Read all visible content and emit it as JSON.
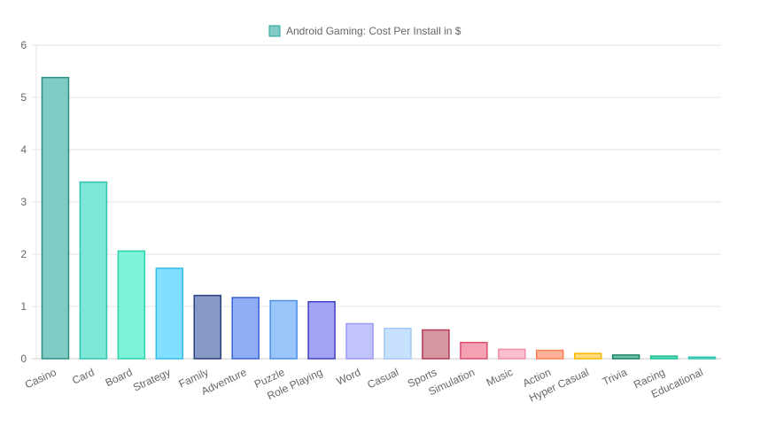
{
  "chart_data": {
    "type": "bar",
    "title": "",
    "xlabel": "",
    "ylabel": "",
    "legend": {
      "label": "Android Gaming: Cost Per Install in $",
      "swatch_fill": "#80cbc4",
      "swatch_stroke": "#26a69a",
      "position": "top-center"
    },
    "ylim": [
      0,
      6
    ],
    "yticks": [
      "0",
      "1",
      "2",
      "3",
      "4",
      "5",
      "6"
    ],
    "grid": true,
    "categories": [
      "Casino",
      "Card",
      "Board",
      "Strategy",
      "Family",
      "Adventure",
      "Puzzle",
      "Role Playing",
      "Word",
      "Casual",
      "Sports",
      "Simulation",
      "Music",
      "Action",
      "Hyper Casual",
      "Trivia",
      "Racing",
      "Educational"
    ],
    "values": [
      5.38,
      3.38,
      2.06,
      1.73,
      1.21,
      1.17,
      1.11,
      1.09,
      0.67,
      0.58,
      0.55,
      0.31,
      0.18,
      0.16,
      0.1,
      0.07,
      0.05,
      0.03
    ],
    "fills": [
      "#80cbc4",
      "#7ee8d8",
      "#7cf3da",
      "#80deff",
      "#8799c6",
      "#8eadf5",
      "#99c5f8",
      "#a4a4f5",
      "#c3c3fd",
      "#c8e2fd",
      "#d797a2",
      "#f4a1b3",
      "#f9bfcc",
      "#ffb199",
      "#ffdb80",
      "#6dc5ad",
      "#5fdcbd",
      "#7ee8d8"
    ],
    "strokes": [
      "#2a8f80",
      "#2ec4ae",
      "#2bd3aa",
      "#33bde8",
      "#2a3f7c",
      "#3a62d6",
      "#4a8ee8",
      "#3e3ec2",
      "#9a9aef",
      "#9fc8f5",
      "#b33a55",
      "#e04c6e",
      "#ee8fa8",
      "#ff7f50",
      "#f5b800",
      "#1d7f67",
      "#1fbf95",
      "#2ec4ae"
    ]
  }
}
